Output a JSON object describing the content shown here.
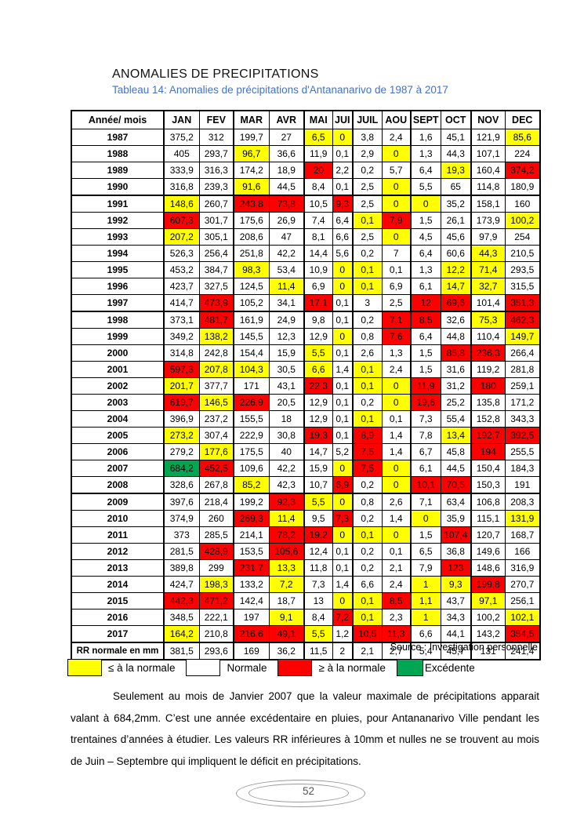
{
  "document": {
    "title": "ANOMALIES DE PRECIPITATIONS",
    "subtitle": "Tableau 14: Anomalies de précipitations d'Antananarivo de 1987 à 2017",
    "source": "Source : Investigation personnelle",
    "paragraph": "Seulement au mois de Janvier 2007 que la valeur maximale de précipitations apparait valant à 684,2mm. C’est une année excédentaire en pluies, pour Antananarivo Ville pendant les trentaines d’années à étudier. Les valeurs RR inférieures à 10mm et nulles ne se trouvent au mois de Juin – Septembre qui impliquent le déficit en précipitations.",
    "page_number": "52"
  },
  "colors": {
    "below_normal_yellow": "#FFFF00",
    "normal_white": "#FFFFFF",
    "above_normal_red": "#FF0000",
    "excess_green": "#00A651",
    "subtitle_blue": "#4472C4",
    "table_border": "#000000"
  },
  "legend": [
    {
      "label": "≤ à la normale",
      "color": "#FFFF00"
    },
    {
      "label": "Normale",
      "color": "#FFFFFF"
    },
    {
      "label": "≥ à la normale",
      "color": "#FF0000"
    },
    {
      "label": "Excédente",
      "color": "#00A651"
    }
  ],
  "table": {
    "header": [
      "Année/ mois",
      "JAN",
      "FEV",
      "MAR",
      "AVR",
      "MAI",
      "JUI",
      "JUIL",
      "AOU",
      "SEPT",
      "OCT",
      "NOV",
      "DEC"
    ],
    "color_key": {
      "w": "#FFFFFF",
      "y": "#FFFF00",
      "r": "#FF0000",
      "g": "#00A651"
    },
    "rows": [
      {
        "label": "1987",
        "values": [
          "375,2",
          "312",
          "199,7",
          "27",
          "6,5",
          "0",
          "3,8",
          "2,4",
          "1,6",
          "45,1",
          "121,9",
          "85,6"
        ],
        "colors": "wwwwyywwwwwy"
      },
      {
        "label": "1988",
        "values": [
          "405",
          "293,7",
          "96,7",
          "36,6",
          "11,9",
          "0,1",
          "2,9",
          "0",
          "1,3",
          "44,3",
          "107,1",
          "224"
        ],
        "colors": "wwywwwwywwww"
      },
      {
        "label": "1989",
        "values": [
          "333,9",
          "316,3",
          "174,2",
          "18,9",
          "20",
          "2,2",
          "0,2",
          "5,7",
          "6,4",
          "19,3",
          "160,4",
          "374,2"
        ],
        "colors": "wwwwrwwwwywr"
      },
      {
        "label": "1990",
        "values": [
          "316,8",
          "239,3",
          "91,6",
          "44,5",
          "8,4",
          "0,1",
          "2,5",
          "0",
          "5,5",
          "65",
          "114,8",
          "180,9"
        ],
        "colors": "wwywwwwywwww"
      },
      {
        "label": "1991",
        "values": [
          "148,6",
          "260,7",
          "243,8",
          "73,8",
          "10,5",
          "9,3",
          "2,5",
          "0",
          "0",
          "35,2",
          "158,1",
          "160"
        ],
        "colors": "ywrrwrwyywww"
      },
      {
        "label": "1992",
        "values": [
          "607,3",
          "301,7",
          "175,6",
          "26,9",
          "7,4",
          "6,4",
          "0,1",
          "7,9",
          "1,5",
          "26,1",
          "173,9",
          "100,2"
        ],
        "colors": "rwwwwwyrwwwy"
      },
      {
        "label": "1993",
        "values": [
          "207,2",
          "305,1",
          "208,6",
          "47",
          "8,1",
          "6,6",
          "2,5",
          "0",
          "4,5",
          "45,6",
          "97,9",
          "254"
        ],
        "colors": "ywwwwwwywwww"
      },
      {
        "label": "1994",
        "values": [
          "526,3",
          "256,4",
          "251,8",
          "42,2",
          "14,4",
          "5,6",
          "0,2",
          "7",
          "6,4",
          "60,6",
          "44,3",
          "210,5"
        ],
        "colors": "wwwwwwwwwwyw"
      },
      {
        "label": "1995",
        "values": [
          "453,2",
          "384,7",
          "98,3",
          "53,4",
          "10,9",
          "0",
          "0,1",
          "0,1",
          "1,3",
          "12,2",
          "71,4",
          "293,5"
        ],
        "colors": "wwywwyywwyyw"
      },
      {
        "label": "1996",
        "values": [
          "423,7",
          "327,5",
          "124,5",
          "11,4",
          "6,9",
          "0",
          "0,1",
          "6,9",
          "6,1",
          "14,7",
          "32,7",
          "315,5"
        ],
        "colors": "wwwywyywwyyw"
      },
      {
        "label": "1997",
        "values": [
          "414,7",
          "473,9",
          "105,2",
          "34,1",
          "17,1",
          "0,1",
          "3",
          "2,5",
          "12",
          "69,6",
          "101,4",
          "351,3"
        ],
        "colors": "wrwwrwwwrrwr"
      },
      {
        "label": "1998",
        "values": [
          "373,1",
          "481,7",
          "161,9",
          "24,9",
          "9,8",
          "0,1",
          "0,2",
          "7,1",
          "8,5",
          "32,6",
          "75,3",
          "462,3"
        ],
        "colors": "wrwwwwwrrwyr"
      },
      {
        "label": "1999",
        "values": [
          "349,2",
          "138,2",
          "145,5",
          "12,3",
          "12,9",
          "0",
          "0,8",
          "7,6",
          "6,4",
          "44,8",
          "110,4",
          "149,7"
        ],
        "colors": "wywwwywrwwwy"
      },
      {
        "label": "2000",
        "values": [
          "314,8",
          "242,8",
          "154,4",
          "15,9",
          "5,5",
          "0,1",
          "2,6",
          "1,3",
          "1,5",
          "85,8",
          "236,3",
          "266,4"
        ],
        "colors": "wwwwywwwwrrw"
      },
      {
        "label": "2001",
        "values": [
          "597,3",
          "207,8",
          "104,3",
          "30,5",
          "6,6",
          "1,4",
          "0,1",
          "2,4",
          "1,5",
          "31,6",
          "119,2",
          "281,8"
        ],
        "colors": "ryywywywwwww"
      },
      {
        "label": "2002",
        "values": [
          "201,7",
          "377,7",
          "171",
          "43,1",
          "22,3",
          "0,1",
          "0,1",
          "0",
          "11,9",
          "31,2",
          "180",
          "259,1"
        ],
        "colors": "ywwwrwyyrwrw"
      },
      {
        "label": "2003",
        "values": [
          "619,7",
          "146,5",
          "226,9",
          "20,5",
          "12,9",
          "0,1",
          "0,2",
          "0",
          "19,6",
          "25,2",
          "135,8",
          "171,2"
        ],
        "colors": "ryrwwwwyrwww"
      },
      {
        "label": "2004",
        "values": [
          "396,9",
          "237,2",
          "155,5",
          "18",
          "12,9",
          "0,1",
          "0,1",
          "0,1",
          "7,3",
          "55,4",
          "152,8",
          "343,3"
        ],
        "colors": "wwwwwwywwwww"
      },
      {
        "label": "2005",
        "values": [
          "273,2",
          "307,4",
          "222,9",
          "30,8",
          "19,3",
          "0,1",
          "8,9",
          "1,4",
          "7,8",
          "13,4",
          "192,7",
          "392,5"
        ],
        "colors": "ywwwrwrwwyrr"
      },
      {
        "label": "2006",
        "values": [
          "279,2",
          "177,6",
          "175,5",
          "40",
          "14,7",
          "5,2",
          "7,5",
          "1,4",
          "6,7",
          "45,8",
          "194",
          "255,5"
        ],
        "colors": "wywwwwrwwwrw"
      },
      {
        "label": "2007",
        "values": [
          "684,2",
          "452,5",
          "109,6",
          "42,2",
          "15,9",
          "0",
          "7,5",
          "0",
          "6,1",
          "44,5",
          "150,4",
          "184,3"
        ],
        "colors": "grwwwyrywwww"
      },
      {
        "label": "2008",
        "values": [
          "328,6",
          "267,8",
          "85,2",
          "42,3",
          "10,7",
          "6,9",
          "0,2",
          "0",
          "10,1",
          "70,5",
          "150,3",
          "191"
        ],
        "colors": "wwywwrwyrrww"
      },
      {
        "label": "2009",
        "values": [
          "397,6",
          "218,4",
          "199,2",
          "92,3",
          "5,5",
          "0",
          "0,8",
          "2,6",
          "7,1",
          "63,4",
          "106,8",
          "208,3"
        ],
        "colors": "wwwryywwwwww"
      },
      {
        "label": "2010",
        "values": [
          "374,9",
          "260",
          "269,3",
          "11,4",
          "9,5",
          "7,3",
          "0,2",
          "1,4",
          "0",
          "35,9",
          "115,1",
          "131,9"
        ],
        "colors": "wwrywrwwywwy"
      },
      {
        "label": "2011",
        "values": [
          "373",
          "285,5",
          "214,1",
          "78,2",
          "19,2",
          "0",
          "0,1",
          "0",
          "1,5",
          "107,4",
          "120,7",
          "168,7"
        ],
        "colors": "wwwrryyywrww"
      },
      {
        "label": "2012",
        "values": [
          "281,5",
          "428,9",
          "153,5",
          "105,6",
          "12,4",
          "0,1",
          "0,2",
          "0,1",
          "6,5",
          "36,8",
          "149,6",
          "166"
        ],
        "colors": "wrwrwwwwwwww"
      },
      {
        "label": "2013",
        "values": [
          "389,8",
          "299",
          "231,7",
          "13,3",
          "11,8",
          "0,1",
          "0,2",
          "2,1",
          "7,9",
          "123",
          "148,6",
          "316,9"
        ],
        "colors": "wwrywwwwwrww"
      },
      {
        "label": "2014",
        "values": [
          "424,7",
          "198,3",
          "133,2",
          "7,2",
          "7,3",
          "1,4",
          "6,6",
          "2,4",
          "1",
          "9,3",
          "199,8",
          "270,7"
        ],
        "colors": "wywywwwwyyrw"
      },
      {
        "label": "2015",
        "values": [
          "442,3",
          "471,2",
          "142,4",
          "18,7",
          "13",
          "0",
          "0,1",
          "8,5",
          "1,1",
          "43,7",
          "97,1",
          "256,1"
        ],
        "colors": "rrwwwyyrywyw"
      },
      {
        "label": "2016",
        "values": [
          "348,5",
          "222,1",
          "197",
          "9,1",
          "8,4",
          "7,2",
          "0,1",
          "2,3",
          "1",
          "34,3",
          "100,2",
          "102,1"
        ],
        "colors": "wwwywrywywwy"
      },
      {
        "label": "2017",
        "values": [
          "164,2",
          "210,8",
          "216,6",
          "49,1",
          "5,5",
          "1,2",
          "10,5",
          "11,3",
          "6,6",
          "44,1",
          "143,2",
          "354,5"
        ],
        "colors": "ywrrywrrwwwr"
      },
      {
        "label": "RR normale en mm",
        "values": [
          "381,5",
          "293,6",
          "169",
          "36,2",
          "11,5",
          "2",
          "2,1",
          "2,7",
          "5,4",
          "45,7",
          "131",
          "241,4"
        ],
        "colors": "wwwwwwwwwwww"
      }
    ]
  }
}
